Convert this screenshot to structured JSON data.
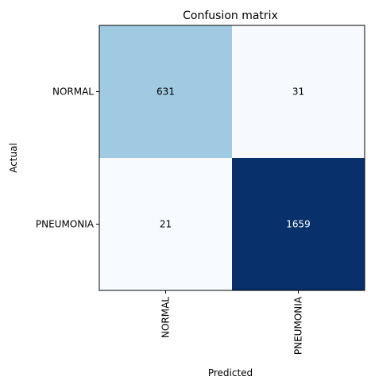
{
  "chart_data": {
    "type": "heatmap",
    "title": "Confusion matrix",
    "xlabel": "Predicted",
    "ylabel": "Actual",
    "x_categories": [
      "NORMAL",
      "PNEUMONIA"
    ],
    "y_categories": [
      "NORMAL",
      "PNEUMONIA"
    ],
    "values": [
      [
        631,
        31
      ],
      [
        21,
        1659
      ]
    ],
    "colormap": "Blues",
    "colors": {
      "high": "#08306b",
      "mid": "#9ecae1",
      "low": "#f7fbff",
      "text_dark": "#000000",
      "text_light": "#ffffff"
    },
    "grid": false
  }
}
